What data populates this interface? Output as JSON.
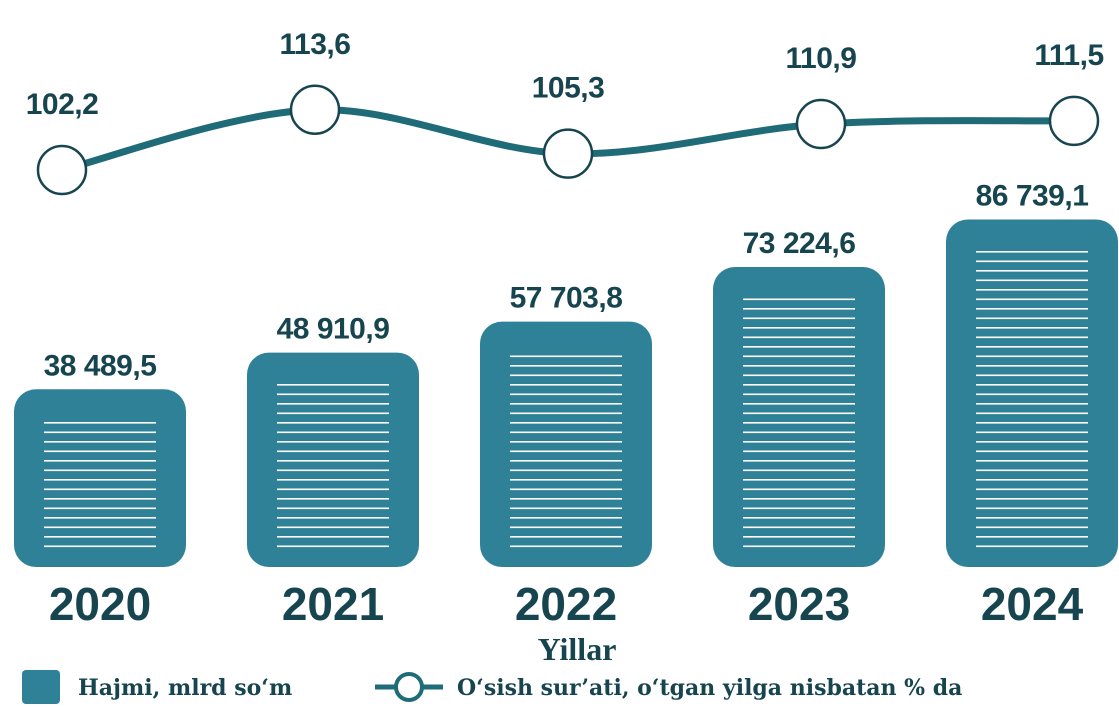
{
  "chart_data": {
    "type": "bar-line",
    "x_label": "Yillar",
    "categories": [
      "2020",
      "2021",
      "2022",
      "2023",
      "2024"
    ],
    "ylim": [
      -12000,
      90000
    ],
    "y2lim": [
      95,
      120
    ],
    "series": [
      {
        "name": "Hajmi, mlrd so‘m",
        "type": "bar",
        "color": "#2f8198",
        "values": [
          38489.5,
          48910.9,
          57703.8,
          73224.6,
          86739.1
        ],
        "value_labels": [
          "38 489,5",
          "48 910,9",
          "57 703,8",
          "73 224,6",
          "86 739,1"
        ]
      },
      {
        "name": "O‘sish sur’ati, o‘tgan yilga nisbatan % da",
        "type": "line",
        "axis": "y2",
        "color": "#1f6b78",
        "values": [
          102.2,
          113.6,
          105.3,
          110.9,
          111.5
        ],
        "value_labels": [
          "102,2",
          "113,6",
          "105,3",
          "110,9",
          "111,5"
        ]
      }
    ]
  }
}
